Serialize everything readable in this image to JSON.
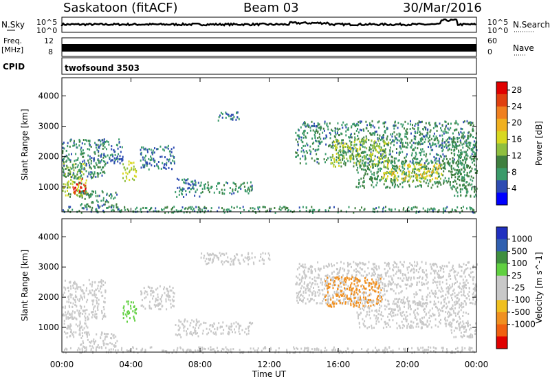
{
  "header": {
    "station": "Saskatoon (fitACF)",
    "beam": "Beam 03",
    "date": "30/Mar/2016"
  },
  "strip_labels": {
    "nsky": "N.Sky",
    "nsearch": "N.Search",
    "freq": "Freq.",
    "freq_unit": "[MHz]",
    "nave": "Nave",
    "cpid": "CPID",
    "program": "twofsound 3503"
  },
  "strip_ticks": {
    "nsky_left": [
      "10^5",
      "10^0"
    ],
    "nsky_right": [
      "10^5",
      "10^0"
    ],
    "freq_left": [
      "12",
      "8"
    ],
    "nave_right": [
      "60",
      "0"
    ]
  },
  "colors": {
    "power": [
      "#0000ff",
      "#2e4cb2",
      "#3a9a6a",
      "#3f7f3f",
      "#8fbf3f",
      "#d8d820",
      "#f0b020",
      "#f08020",
      "#e04010",
      "#e00000"
    ],
    "velocity": [
      "#2030c0",
      "#3060b0",
      "#3f8f3f",
      "#60d040",
      "#c8c8c8",
      "#c8c8c8",
      "#f0c020",
      "#f09020",
      "#f06010",
      "#e00000"
    ]
  },
  "chart_data": [
    {
      "type": "heatmap",
      "title": "Power",
      "xlabel": "",
      "ylabel": "Slant Range [km]",
      "x_ticks": [
        "00:00",
        "04:00",
        "08:00",
        "12:00",
        "16:00",
        "20:00",
        "00:00"
      ],
      "y_ticks": [
        1000,
        2000,
        3000,
        4000
      ],
      "ylim": [
        180,
        4600
      ],
      "xlim_hours": [
        0,
        24
      ],
      "colorbar": {
        "label": "Power [dB]",
        "ticks": [
          4,
          8,
          12,
          16,
          20,
          24,
          28
        ],
        "range": [
          0,
          30
        ]
      },
      "regions": [
        {
          "t0": 0.0,
          "t1": 1.5,
          "r0": 700,
          "r1": 1800,
          "level": 14
        },
        {
          "t0": 0.0,
          "t1": 2.5,
          "r0": 1300,
          "r1": 2600,
          "level": 8
        },
        {
          "t0": 0.6,
          "t1": 1.4,
          "r0": 800,
          "r1": 1300,
          "level": 27
        },
        {
          "t0": 1.0,
          "t1": 3.2,
          "r0": 350,
          "r1": 900,
          "level": 8
        },
        {
          "t0": 1.8,
          "t1": 3.5,
          "r0": 1800,
          "r1": 2600,
          "level": 6
        },
        {
          "t0": 3.5,
          "t1": 4.3,
          "r0": 1200,
          "r1": 1900,
          "level": 15
        },
        {
          "t0": 4.5,
          "t1": 6.5,
          "r0": 1600,
          "r1": 2400,
          "level": 6
        },
        {
          "t0": 6.5,
          "t1": 8.0,
          "r0": 700,
          "r1": 1300,
          "level": 6
        },
        {
          "t0": 8.0,
          "t1": 11.0,
          "r0": 800,
          "r1": 1200,
          "level": 8
        },
        {
          "t0": 9.0,
          "t1": 10.5,
          "r0": 3200,
          "r1": 3500,
          "level": 6
        },
        {
          "t0": 13.5,
          "t1": 24.0,
          "r0": 1800,
          "r1": 3200,
          "level": 8
        },
        {
          "t0": 15.5,
          "t1": 19.0,
          "r0": 1700,
          "r1": 2600,
          "level": 14
        },
        {
          "t0": 17.0,
          "t1": 23.5,
          "r0": 1000,
          "r1": 1900,
          "level": 9
        },
        {
          "t0": 18.5,
          "t1": 22.0,
          "r0": 1200,
          "r1": 1800,
          "level": 17
        },
        {
          "t0": 22.5,
          "t1": 24.0,
          "r0": 700,
          "r1": 2700,
          "level": 9
        },
        {
          "t0": 0.0,
          "t1": 24.0,
          "r0": 180,
          "r1": 380,
          "level": 8
        }
      ]
    },
    {
      "type": "heatmap",
      "title": "Velocity",
      "xlabel": "Time UT",
      "ylabel": "Slant Range [km]",
      "x_ticks": [
        "00:00",
        "04:00",
        "08:00",
        "12:00",
        "16:00",
        "20:00",
        "00:00"
      ],
      "y_ticks": [
        1000,
        2000,
        3000,
        4000
      ],
      "ylim": [
        180,
        4600
      ],
      "xlim_hours": [
        0,
        24
      ],
      "colorbar": {
        "label": "Velocity [m s^-1]",
        "ticks": [
          "1000",
          "500",
          "100",
          "25",
          "-25",
          "-100",
          "-500",
          "-1000"
        ],
        "range": [
          -1200,
          1200
        ]
      },
      "regions": [
        {
          "t0": 0.0,
          "t1": 2.5,
          "r0": 1300,
          "r1": 2600,
          "level": 0
        },
        {
          "t0": 0.0,
          "t1": 1.5,
          "r0": 700,
          "r1": 1600,
          "level": -150
        },
        {
          "t0": 1.0,
          "t1": 3.2,
          "r0": 350,
          "r1": 900,
          "level": -120
        },
        {
          "t0": 3.5,
          "t1": 4.3,
          "r0": 1200,
          "r1": 1900,
          "level": 300
        },
        {
          "t0": 4.5,
          "t1": 6.5,
          "r0": 1600,
          "r1": 2400,
          "level": 0
        },
        {
          "t0": 6.5,
          "t1": 8.0,
          "r0": 700,
          "r1": 1300,
          "level": 0
        },
        {
          "t0": 8.0,
          "t1": 11.0,
          "r0": 800,
          "r1": 1200,
          "level": 0
        },
        {
          "t0": 8.0,
          "t1": 12.0,
          "r0": 3100,
          "r1": 3500,
          "level": 0
        },
        {
          "t0": 13.5,
          "t1": 24.0,
          "r0": 1800,
          "r1": 3200,
          "level": 0
        },
        {
          "t0": 15.2,
          "t1": 18.5,
          "r0": 1700,
          "r1": 2700,
          "level": -600
        },
        {
          "t0": 17.0,
          "t1": 23.5,
          "r0": 1000,
          "r1": 1900,
          "level": 0
        },
        {
          "t0": 22.5,
          "t1": 24.0,
          "r0": 700,
          "r1": 1200,
          "level": -200
        },
        {
          "t0": 0.0,
          "t1": 24.0,
          "r0": 180,
          "r1": 380,
          "level": 60
        }
      ]
    }
  ]
}
